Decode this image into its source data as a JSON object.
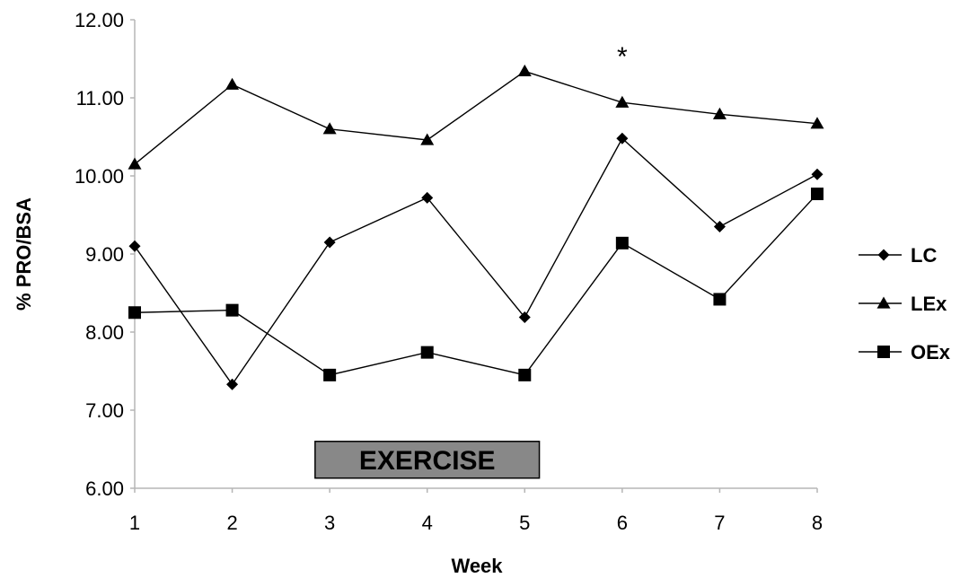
{
  "chart_data": {
    "type": "line",
    "x": [
      1,
      2,
      3,
      4,
      5,
      6,
      7,
      8
    ],
    "xlabel": "Week",
    "ylabel": "% PRO/BSA",
    "ylim": [
      6.0,
      12.0
    ],
    "yticks": [
      "6.00",
      "7.00",
      "8.00",
      "9.00",
      "10.00",
      "11.00",
      "12.00"
    ],
    "xticks": [
      "1",
      "2",
      "3",
      "4",
      "5",
      "6",
      "7",
      "8"
    ],
    "grid": false,
    "legend_position": "right",
    "series": [
      {
        "name": "LC",
        "marker": "diamond",
        "values": [
          9.1,
          7.33,
          9.15,
          9.72,
          8.19,
          10.48,
          9.35,
          10.02
        ]
      },
      {
        "name": "LEx",
        "marker": "triangle",
        "values": [
          10.15,
          11.17,
          10.6,
          10.46,
          11.34,
          10.94,
          10.79,
          10.67
        ]
      },
      {
        "name": "OEx",
        "marker": "square",
        "values": [
          8.25,
          8.28,
          7.45,
          7.74,
          7.45,
          9.14,
          8.42,
          9.77
        ]
      }
    ],
    "annotations": [
      {
        "text": "*",
        "x": 6,
        "y": 11.55
      },
      {
        "text": "EXERCISE",
        "x_from": 2.85,
        "x_to": 5.15,
        "y_from": 6.13,
        "y_to": 6.6
      }
    ],
    "colors": {
      "line": "#000000",
      "exercise_box": "#888888"
    }
  }
}
